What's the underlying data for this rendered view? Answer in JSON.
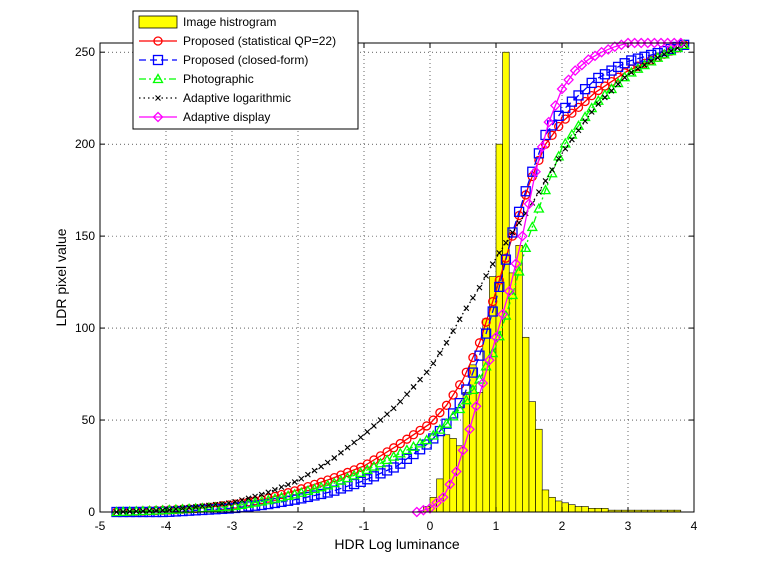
{
  "chart_data": {
    "type": "line",
    "title": "",
    "xlabel": "HDR Log luminance",
    "ylabel": "LDR pixel value",
    "xlim": [
      -5,
      4
    ],
    "ylim": [
      0,
      255
    ],
    "xticks": [
      -5,
      -4,
      -3,
      -2,
      -1,
      0,
      1,
      2,
      3,
      4
    ],
    "yticks": [
      0,
      50,
      100,
      150,
      200,
      250
    ],
    "grid": true,
    "legend_position": "top-left",
    "histogram": {
      "name": "Image histrogram",
      "color": "#ffff00",
      "bin_width": 0.1,
      "bins": [
        [
          -0.1,
          3
        ],
        [
          0.0,
          8
        ],
        [
          0.1,
          18
        ],
        [
          0.2,
          42
        ],
        [
          0.3,
          40
        ],
        [
          0.4,
          36
        ],
        [
          0.5,
          65
        ],
        [
          0.6,
          80
        ],
        [
          0.7,
          65
        ],
        [
          0.8,
          105
        ],
        [
          0.9,
          128
        ],
        [
          1.0,
          200
        ],
        [
          1.1,
          250
        ],
        [
          1.2,
          130
        ],
        [
          1.3,
          145
        ],
        [
          1.4,
          95
        ],
        [
          1.5,
          60
        ],
        [
          1.6,
          45
        ],
        [
          1.7,
          12
        ],
        [
          1.8,
          8
        ],
        [
          1.9,
          6
        ],
        [
          2.0,
          5
        ],
        [
          2.1,
          4
        ],
        [
          2.2,
          3
        ],
        [
          2.3,
          3
        ],
        [
          2.4,
          2
        ],
        [
          2.5,
          2
        ],
        [
          2.6,
          2
        ],
        [
          2.7,
          1
        ],
        [
          2.8,
          1
        ],
        [
          2.9,
          1
        ],
        [
          3.0,
          1
        ],
        [
          3.1,
          1
        ],
        [
          3.2,
          1
        ],
        [
          3.3,
          1
        ],
        [
          3.4,
          1
        ],
        [
          3.5,
          1
        ],
        [
          3.6,
          1
        ],
        [
          3.7,
          1
        ]
      ]
    },
    "series": [
      {
        "name": "Proposed (statistical QP=22)",
        "color": "#ff0000",
        "linestyle": "solid",
        "marker": "circle",
        "x": [
          -4.75,
          -4.0,
          -3.5,
          -3.0,
          -2.5,
          -2.0,
          -1.5,
          -1.0,
          -0.5,
          0.0,
          0.25,
          0.5,
          0.75,
          1.0,
          1.25,
          1.5,
          1.75,
          2.0,
          2.5,
          3.0,
          3.5,
          3.85
        ],
        "y": [
          0,
          1,
          2,
          4,
          7,
          12,
          18,
          25,
          36,
          48,
          58,
          72,
          92,
          120,
          150,
          178,
          200,
          212,
          228,
          240,
          248,
          254
        ]
      },
      {
        "name": "Proposed (closed-form)",
        "color": "#0000ff",
        "linestyle": "dashed",
        "marker": "square",
        "x": [
          -4.75,
          -4.0,
          -3.5,
          -3.0,
          -2.5,
          -2.0,
          -1.5,
          -1.0,
          -0.5,
          0.0,
          0.25,
          0.5,
          0.75,
          1.0,
          1.25,
          1.5,
          1.75,
          2.0,
          2.5,
          3.0,
          3.5,
          3.85
        ],
        "y": [
          0,
          0,
          1,
          2,
          4,
          7,
          11,
          17,
          25,
          38,
          48,
          62,
          85,
          115,
          152,
          180,
          205,
          218,
          235,
          245,
          250,
          254
        ]
      },
      {
        "name": "Photographic",
        "color": "#00ff00",
        "linestyle": "dashdot",
        "marker": "triangle",
        "x": [
          -4.75,
          -4.0,
          -3.5,
          -3.0,
          -2.5,
          -2.0,
          -1.5,
          -1.0,
          -0.5,
          0.0,
          0.25,
          0.5,
          0.75,
          1.0,
          1.25,
          1.5,
          1.75,
          2.0,
          2.5,
          3.0,
          3.5,
          3.85
        ],
        "y": [
          0,
          1,
          2,
          3,
          6,
          10,
          15,
          22,
          31,
          40,
          48,
          58,
          72,
          90,
          118,
          150,
          175,
          198,
          222,
          238,
          248,
          254
        ]
      },
      {
        "name": "Adaptive logarithmic",
        "color": "#000000",
        "linestyle": "dotted",
        "marker": "x",
        "x": [
          -4.75,
          -4.0,
          -3.5,
          -3.0,
          -2.5,
          -2.0,
          -1.5,
          -1.0,
          -0.5,
          0.0,
          0.25,
          0.5,
          0.75,
          1.0,
          1.25,
          1.5,
          1.75,
          2.0,
          2.5,
          3.0,
          3.5,
          3.85
        ],
        "y": [
          0,
          1,
          3,
          5,
          10,
          17,
          28,
          42,
          58,
          78,
          92,
          108,
          122,
          138,
          152,
          165,
          180,
          195,
          220,
          238,
          248,
          254
        ]
      },
      {
        "name": "Adaptive display",
        "color": "#ff00ff",
        "linestyle": "solid",
        "marker": "diamond",
        "x": [
          -0.2,
          0.0,
          0.2,
          0.4,
          0.6,
          0.8,
          1.0,
          1.2,
          1.4,
          1.6,
          1.8,
          2.0,
          2.2,
          2.4,
          2.6,
          2.8,
          3.0,
          3.2,
          3.4,
          3.6,
          3.85
        ],
        "y": [
          0,
          2,
          8,
          22,
          45,
          70,
          95,
          120,
          150,
          185,
          212,
          230,
          240,
          246,
          250,
          253,
          255,
          255,
          255,
          255,
          255
        ]
      }
    ]
  }
}
